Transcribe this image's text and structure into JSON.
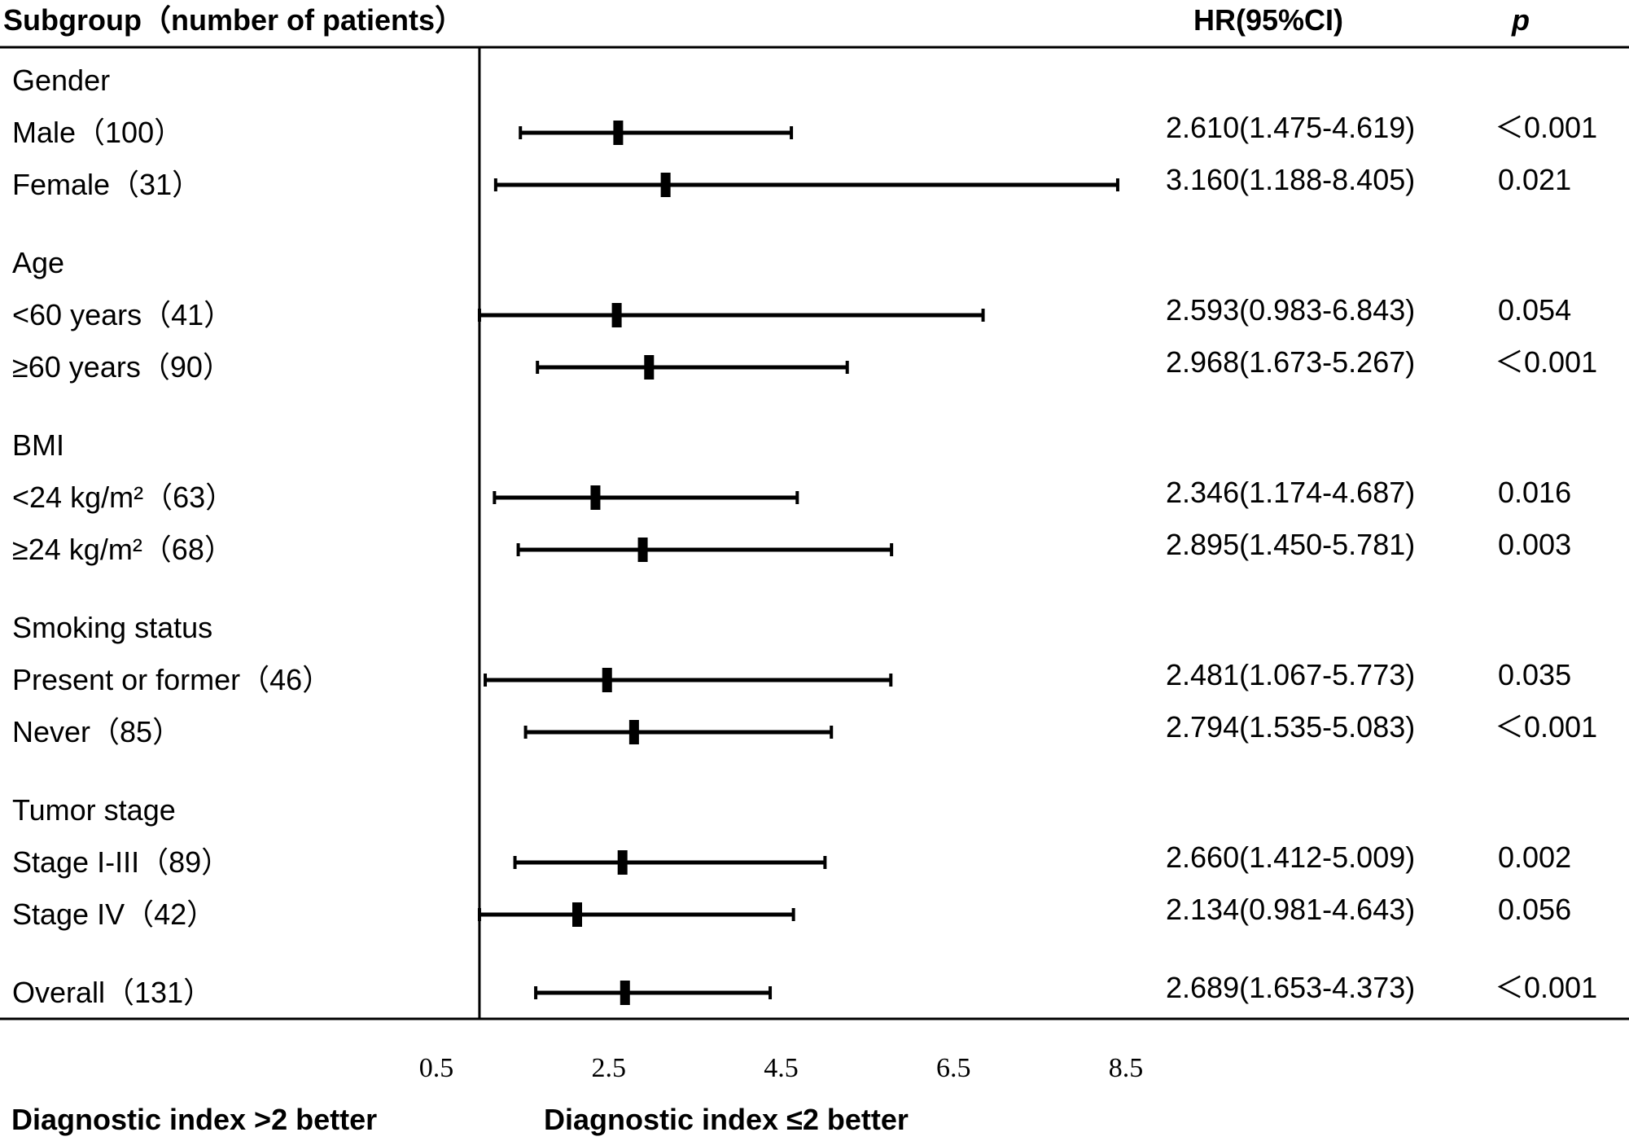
{
  "header": {
    "subgroup": "Subgroup（number of patients）",
    "hr": "HR(95%CI)",
    "p": "p"
  },
  "footer": {
    "left": "Diagnostic index >2 better",
    "right": "Diagnostic index ≤2 better"
  },
  "colors": {
    "ink": "#000000",
    "background": "#ffffff"
  },
  "chart_data": {
    "type": "forest",
    "title": "",
    "xlabel": "",
    "xlim": [
      0.5,
      8.5
    ],
    "x_ticks": [
      "0.5",
      "2.5",
      "4.5",
      "6.5",
      "8.5"
    ],
    "reference_line": 1,
    "rows": [
      {
        "kind": "group",
        "label": "Gender"
      },
      {
        "kind": "item",
        "label": "Male（100）",
        "hr": 2.61,
        "lo": 1.475,
        "hi": 4.619,
        "hr_text": "2.610(1.475-4.619)",
        "p": "＜0.001"
      },
      {
        "kind": "item",
        "label": "Female（31）",
        "hr": 3.16,
        "lo": 1.188,
        "hi": 8.405,
        "hr_text": "3.160(1.188-8.405)",
        "p": "0.021"
      },
      {
        "kind": "group",
        "label": "Age"
      },
      {
        "kind": "item",
        "label": "<60 years（41）",
        "hr": 2.593,
        "lo": 0.983,
        "hi": 6.843,
        "hr_text": "2.593(0.983-6.843)",
        "p": "0.054"
      },
      {
        "kind": "item",
        "label": "≥60 years（90）",
        "hr": 2.968,
        "lo": 1.673,
        "hi": 5.267,
        "hr_text": "2.968(1.673-5.267)",
        "p": "＜0.001"
      },
      {
        "kind": "group",
        "label": "BMI"
      },
      {
        "kind": "item",
        "label": "<24 kg/m²（63）",
        "hr": 2.346,
        "lo": 1.174,
        "hi": 4.687,
        "hr_text": "2.346(1.174-4.687)",
        "p": "0.016"
      },
      {
        "kind": "item",
        "label": "≥24 kg/m²（68）",
        "hr": 2.895,
        "lo": 1.45,
        "hi": 5.781,
        "hr_text": "2.895(1.450-5.781)",
        "p": "0.003"
      },
      {
        "kind": "group",
        "label": "Smoking status"
      },
      {
        "kind": "item",
        "label": "Present or former（46）",
        "hr": 2.481,
        "lo": 1.067,
        "hi": 5.773,
        "hr_text": "2.481(1.067-5.773)",
        "p": "0.035"
      },
      {
        "kind": "item",
        "label": "Never（85）",
        "hr": 2.794,
        "lo": 1.535,
        "hi": 5.083,
        "hr_text": "2.794(1.535-5.083)",
        "p": "＜0.001"
      },
      {
        "kind": "group",
        "label": "Tumor stage"
      },
      {
        "kind": "item",
        "label": "Stage I-III（89）",
        "hr": 2.66,
        "lo": 1.412,
        "hi": 5.009,
        "hr_text": "2.660(1.412-5.009)",
        "p": "0.002"
      },
      {
        "kind": "item",
        "label": "Stage IV（42）",
        "hr": 2.134,
        "lo": 0.981,
        "hi": 4.643,
        "hr_text": "2.134(0.981-4.643)",
        "p": "0.056"
      },
      {
        "kind": "item",
        "label": "Overall（131）",
        "hr": 2.689,
        "lo": 1.653,
        "hi": 4.373,
        "hr_text": "2.689(1.653-4.373)",
        "p": "＜0.001"
      }
    ]
  }
}
